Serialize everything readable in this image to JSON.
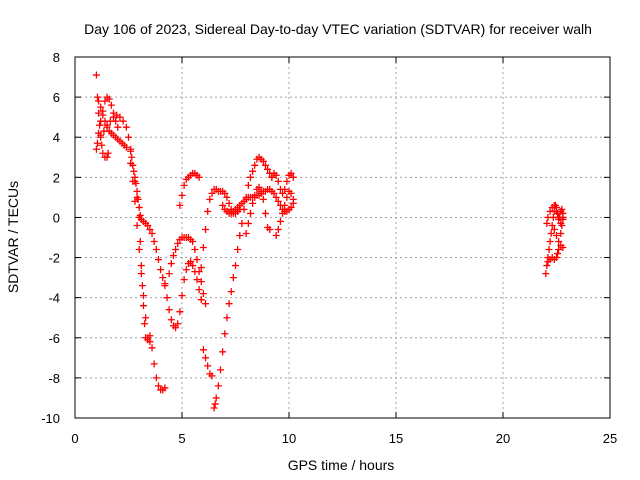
{
  "chart_data": {
    "type": "scatter",
    "title": "Day 106 of 2023, Sidereal Day-to-day VTEC variation (SDTVAR) for receiver walh",
    "xlabel": "GPS time / hours",
    "ylabel": "SDTVAR / TECUs",
    "xlim": [
      0,
      25
    ],
    "ylim": [
      -10,
      8
    ],
    "xticks": [
      "0",
      "5",
      "10",
      "15",
      "20",
      "25"
    ],
    "yticks": [
      "-10",
      "-8",
      "-6",
      "-4",
      "-2",
      "0",
      "2",
      "4",
      "6",
      "8"
    ],
    "grid": true,
    "marker": "plus",
    "color": "#ff0000",
    "series": [
      {
        "name": "",
        "points": [
          [
            1.0,
            7.1
          ],
          [
            1.05,
            6.0
          ],
          [
            1.1,
            5.2
          ],
          [
            1.15,
            4.6
          ],
          [
            1.2,
            4.1
          ],
          [
            1.25,
            3.6
          ],
          [
            1.3,
            3.2
          ],
          [
            1.4,
            3.0
          ],
          [
            1.5,
            3.0
          ],
          [
            1.55,
            3.2
          ],
          [
            1.0,
            3.4
          ],
          [
            1.05,
            3.7
          ],
          [
            1.1,
            4.2
          ],
          [
            1.2,
            4.8
          ],
          [
            1.3,
            5.3
          ],
          [
            1.4,
            5.8
          ],
          [
            1.5,
            6.0
          ],
          [
            1.6,
            5.9
          ],
          [
            1.7,
            5.6
          ],
          [
            1.8,
            5.2
          ],
          [
            1.9,
            4.8
          ],
          [
            2.0,
            4.5
          ],
          [
            1.1,
            5.8
          ],
          [
            1.2,
            5.5
          ],
          [
            1.3,
            5.1
          ],
          [
            1.4,
            4.8
          ],
          [
            1.5,
            4.5
          ],
          [
            1.6,
            4.3
          ],
          [
            1.7,
            4.2
          ],
          [
            1.8,
            4.1
          ],
          [
            1.9,
            4.0
          ],
          [
            2.0,
            3.9
          ],
          [
            2.1,
            3.8
          ],
          [
            2.2,
            3.7
          ],
          [
            2.3,
            3.6
          ],
          [
            2.4,
            3.5
          ],
          [
            1.2,
            4.0
          ],
          [
            1.35,
            4.3
          ],
          [
            1.5,
            4.6
          ],
          [
            1.65,
            4.8
          ],
          [
            1.8,
            5.0
          ],
          [
            1.95,
            5.1
          ],
          [
            2.1,
            5.0
          ],
          [
            2.25,
            4.8
          ],
          [
            2.4,
            4.5
          ],
          [
            2.5,
            4.0
          ],
          [
            2.6,
            3.3
          ],
          [
            2.6,
            3.4
          ],
          [
            2.65,
            3.0
          ],
          [
            2.7,
            2.6
          ],
          [
            2.75,
            2.3
          ],
          [
            2.8,
            2.0
          ],
          [
            2.85,
            1.7
          ],
          [
            2.9,
            1.3
          ],
          [
            2.95,
            0.9
          ],
          [
            3.0,
            0.5
          ],
          [
            3.05,
            0.1
          ],
          [
            3.1,
            -0.1
          ],
          [
            3.2,
            -0.2
          ],
          [
            3.3,
            -0.3
          ],
          [
            3.4,
            -0.4
          ],
          [
            3.5,
            -0.6
          ],
          [
            3.6,
            -0.8
          ],
          [
            3.7,
            -1.2
          ],
          [
            3.8,
            -1.6
          ],
          [
            3.9,
            -2.1
          ],
          [
            4.0,
            -2.6
          ],
          [
            4.1,
            -3.0
          ],
          [
            4.2,
            -3.3
          ],
          [
            2.6,
            2.7
          ],
          [
            2.7,
            1.8
          ],
          [
            2.8,
            0.8
          ],
          [
            2.9,
            -0.4
          ],
          [
            3.0,
            -1.6
          ],
          [
            3.1,
            -2.8
          ],
          [
            3.2,
            -3.9
          ],
          [
            3.3,
            -5.0
          ],
          [
            3.4,
            -6.0
          ],
          [
            3.5,
            -6.2
          ],
          [
            3.6,
            -6.5
          ],
          [
            3.7,
            -7.3
          ],
          [
            3.8,
            -8.0
          ],
          [
            3.9,
            -8.4
          ],
          [
            4.0,
            -8.6
          ],
          [
            4.1,
            -8.6
          ],
          [
            4.2,
            -8.5
          ],
          [
            2.8,
            1.8
          ],
          [
            2.9,
            1.0
          ],
          [
            3.0,
            0.0
          ],
          [
            3.05,
            -1.2
          ],
          [
            3.1,
            -2.4
          ],
          [
            3.15,
            -3.4
          ],
          [
            3.2,
            -4.4
          ],
          [
            3.25,
            -5.3
          ],
          [
            3.3,
            -6.0
          ],
          [
            3.4,
            -6.1
          ],
          [
            3.5,
            -5.9
          ],
          [
            4.2,
            -3.4
          ],
          [
            4.3,
            -4.0
          ],
          [
            4.4,
            -4.6
          ],
          [
            4.5,
            -5.1
          ],
          [
            4.6,
            -5.4
          ],
          [
            4.7,
            -5.5
          ],
          [
            4.8,
            -5.3
          ],
          [
            4.9,
            -4.7
          ],
          [
            5.0,
            -3.9
          ],
          [
            5.1,
            -3.1
          ],
          [
            5.2,
            -2.6
          ],
          [
            5.3,
            -2.3
          ],
          [
            5.4,
            -2.2
          ],
          [
            5.5,
            -2.4
          ],
          [
            5.6,
            -2.7
          ],
          [
            5.7,
            -3.1
          ],
          [
            5.8,
            -3.6
          ],
          [
            5.9,
            -4.1
          ],
          [
            4.4,
            -2.8
          ],
          [
            4.5,
            -2.3
          ],
          [
            4.6,
            -1.9
          ],
          [
            4.7,
            -1.6
          ],
          [
            4.8,
            -1.3
          ],
          [
            4.9,
            -1.1
          ],
          [
            5.0,
            -1.0
          ],
          [
            5.1,
            -1.0
          ],
          [
            5.2,
            -1.0
          ],
          [
            5.3,
            -1.0
          ],
          [
            5.4,
            -1.1
          ],
          [
            5.5,
            -1.2
          ],
          [
            5.6,
            -1.6
          ],
          [
            5.7,
            -2.1
          ],
          [
            5.8,
            -2.7
          ],
          [
            5.9,
            -3.2
          ],
          [
            6.0,
            -3.8
          ],
          [
            6.1,
            -4.3
          ],
          [
            4.9,
            0.6
          ],
          [
            5.0,
            1.1
          ],
          [
            5.1,
            1.6
          ],
          [
            5.2,
            1.9
          ],
          [
            5.3,
            2.0
          ],
          [
            5.4,
            2.1
          ],
          [
            5.5,
            2.2
          ],
          [
            5.6,
            2.2
          ],
          [
            5.7,
            2.1
          ],
          [
            5.8,
            2.0
          ],
          [
            5.9,
            -2.5
          ],
          [
            6.0,
            -1.5
          ],
          [
            6.1,
            -0.6
          ],
          [
            6.2,
            0.3
          ],
          [
            6.3,
            0.9
          ],
          [
            6.4,
            1.2
          ],
          [
            6.5,
            1.4
          ],
          [
            6.6,
            1.4
          ],
          [
            6.7,
            1.3
          ],
          [
            6.8,
            1.3
          ],
          [
            6.9,
            1.3
          ],
          [
            7.0,
            1.2
          ],
          [
            7.1,
            1.0
          ],
          [
            7.2,
            0.7
          ],
          [
            7.3,
            0.4
          ],
          [
            7.4,
            0.2
          ],
          [
            7.5,
            0.2
          ],
          [
            7.6,
            0.3
          ],
          [
            7.7,
            0.4
          ],
          [
            6.0,
            -6.6
          ],
          [
            6.1,
            -7.0
          ],
          [
            6.2,
            -7.4
          ],
          [
            6.3,
            -7.8
          ],
          [
            6.4,
            -7.9
          ],
          [
            6.5,
            -9.5
          ],
          [
            6.55,
            -9.3
          ],
          [
            6.6,
            -9.0
          ],
          [
            6.7,
            -8.4
          ],
          [
            6.8,
            -7.6
          ],
          [
            6.9,
            -6.7
          ],
          [
            7.0,
            -5.8
          ],
          [
            7.1,
            -5.0
          ],
          [
            7.2,
            -4.3
          ],
          [
            7.3,
            -3.7
          ],
          [
            7.4,
            -3.0
          ],
          [
            7.5,
            -2.4
          ],
          [
            7.6,
            -1.6
          ],
          [
            7.7,
            -0.9
          ],
          [
            7.8,
            -0.3
          ],
          [
            7.9,
            0.4
          ],
          [
            8.0,
            1.0
          ],
          [
            8.1,
            1.6
          ],
          [
            8.2,
            2.0
          ],
          [
            8.3,
            2.3
          ],
          [
            8.4,
            2.6
          ],
          [
            8.5,
            2.9
          ],
          [
            8.6,
            3.0
          ],
          [
            8.7,
            2.9
          ],
          [
            8.8,
            2.8
          ],
          [
            8.9,
            2.6
          ],
          [
            9.0,
            2.4
          ],
          [
            9.1,
            2.2
          ],
          [
            9.2,
            2.0
          ],
          [
            6.9,
            0.6
          ],
          [
            7.0,
            0.4
          ],
          [
            7.1,
            0.3
          ],
          [
            7.2,
            0.2
          ],
          [
            7.3,
            0.2
          ],
          [
            7.4,
            0.3
          ],
          [
            7.5,
            0.4
          ],
          [
            7.6,
            0.5
          ],
          [
            7.7,
            0.6
          ],
          [
            7.8,
            0.7
          ],
          [
            7.9,
            0.8
          ],
          [
            8.0,
            0.9
          ],
          [
            8.1,
            1.0
          ],
          [
            8.2,
            1.0
          ],
          [
            8.3,
            1.0
          ],
          [
            8.4,
            1.0
          ],
          [
            8.5,
            1.1
          ],
          [
            8.6,
            1.1
          ],
          [
            8.7,
            1.2
          ],
          [
            8.8,
            1.3
          ],
          [
            8.9,
            1.3
          ],
          [
            9.0,
            1.4
          ],
          [
            9.1,
            1.4
          ],
          [
            9.2,
            1.3
          ],
          [
            9.3,
            1.2
          ],
          [
            9.4,
            1.0
          ],
          [
            9.5,
            0.8
          ],
          [
            9.6,
            0.6
          ],
          [
            9.7,
            0.4
          ],
          [
            9.8,
            0.3
          ],
          [
            9.9,
            0.3
          ],
          [
            10.0,
            0.4
          ],
          [
            10.1,
            0.5
          ],
          [
            10.2,
            0.7
          ],
          [
            8.0,
            -0.8
          ],
          [
            8.1,
            -0.3
          ],
          [
            8.2,
            0.2
          ],
          [
            8.3,
            0.7
          ],
          [
            8.4,
            1.1
          ],
          [
            8.5,
            1.4
          ],
          [
            8.6,
            1.5
          ],
          [
            8.7,
            1.3
          ],
          [
            8.8,
            0.9
          ],
          [
            8.9,
            0.2
          ],
          [
            9.0,
            -0.5
          ],
          [
            9.1,
            -0.6
          ],
          [
            9.2,
            2.0
          ],
          [
            9.3,
            2.2
          ],
          [
            9.4,
            2.1
          ],
          [
            9.5,
            1.8
          ],
          [
            9.6,
            1.4
          ],
          [
            9.7,
            1.2
          ],
          [
            9.8,
            1.4
          ],
          [
            9.9,
            1.8
          ],
          [
            10.0,
            2.1
          ],
          [
            10.1,
            2.2
          ],
          [
            10.2,
            2.0
          ],
          [
            9.4,
            -0.9
          ],
          [
            9.5,
            -0.6
          ],
          [
            9.6,
            -0.2
          ],
          [
            9.7,
            0.2
          ],
          [
            9.8,
            0.6
          ],
          [
            9.9,
            1.0
          ],
          [
            10.0,
            1.3
          ],
          [
            10.1,
            1.2
          ],
          [
            10.2,
            0.9
          ],
          [
            22.0,
            -2.8
          ],
          [
            22.05,
            -2.4
          ],
          [
            22.1,
            -2.0
          ],
          [
            22.15,
            -1.6
          ],
          [
            22.2,
            -1.2
          ],
          [
            22.25,
            -0.8
          ],
          [
            22.3,
            -0.4
          ],
          [
            22.35,
            0.0
          ],
          [
            22.4,
            0.3
          ],
          [
            22.45,
            0.6
          ],
          [
            22.5,
            0.5
          ],
          [
            22.55,
            0.2
          ],
          [
            22.6,
            -0.1
          ],
          [
            22.65,
            0.0
          ],
          [
            22.7,
            0.3
          ],
          [
            22.75,
            0.4
          ],
          [
            22.8,
            0.2
          ],
          [
            22.05,
            -0.3
          ],
          [
            22.1,
            0.0
          ],
          [
            22.2,
            0.3
          ],
          [
            22.3,
            0.5
          ],
          [
            22.4,
            0.6
          ],
          [
            22.5,
            0.3
          ],
          [
            22.6,
            0.0
          ],
          [
            22.7,
            -0.3
          ],
          [
            22.8,
            -0.1
          ],
          [
            22.1,
            -2.2
          ],
          [
            22.2,
            -2.1
          ],
          [
            22.3,
            -2.0
          ],
          [
            22.4,
            -2.1
          ],
          [
            22.5,
            -2.0
          ],
          [
            22.55,
            -1.8
          ],
          [
            22.6,
            -1.6
          ],
          [
            22.7,
            -1.4
          ],
          [
            22.8,
            -1.5
          ],
          [
            22.4,
            -0.6
          ],
          [
            22.5,
            -0.9
          ],
          [
            22.6,
            -1.2
          ],
          [
            22.7,
            -0.8
          ],
          [
            22.75,
            -0.4
          ],
          [
            22.8,
            0.0
          ]
        ]
      }
    ]
  }
}
